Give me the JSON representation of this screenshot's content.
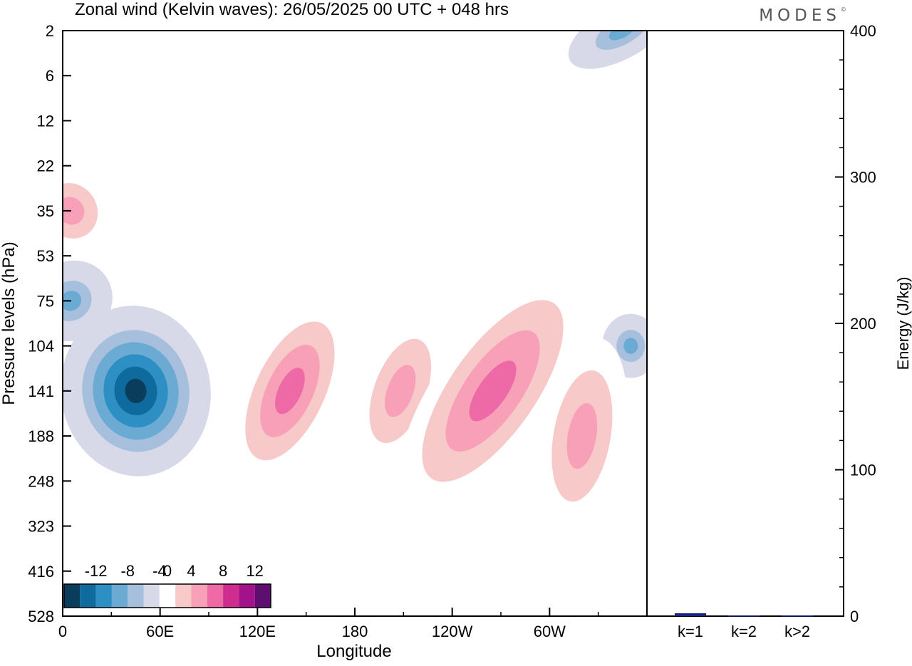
{
  "brand": "MODES",
  "brand_mark": "©",
  "chart_data": [
    {
      "type": "heatmap",
      "title": "Zonal wind (Kelvin waves):  26/05/2025  00 UTC  + 048 hrs",
      "xlabel": "Longitude",
      "ylabel": "Pressure levels (hPa)",
      "x_ticks": [
        "0",
        "60E",
        "120E",
        "180",
        "120W",
        "60W"
      ],
      "x_tick_degrees": [
        0,
        60,
        120,
        180,
        240,
        300
      ],
      "xlim": [
        0,
        360
      ],
      "y_ticks": [
        "2",
        "6",
        "12",
        "22",
        "35",
        "53",
        "75",
        "104",
        "141",
        "188",
        "248",
        "323",
        "416",
        "528"
      ],
      "y_scale": "log-pressure (levels evenly spaced)",
      "colorbar": {
        "labels": [
          "-12",
          "-8",
          "-4",
          "0",
          "4",
          "8",
          "12"
        ],
        "levels": [
          -14,
          -12,
          -10,
          -8,
          -6,
          -4,
          -2,
          2,
          4,
          6,
          8,
          10,
          12,
          14
        ],
        "colors": [
          "#0a3d5c",
          "#0f6b9e",
          "#2d8fc4",
          "#6aaad3",
          "#a5bfdc",
          "#d7d8e8",
          "#ffffff",
          "#f7c9c9",
          "#f7a0b8",
          "#ee6aa7",
          "#cf2d8e",
          "#a3128a",
          "#5e0e6e"
        ],
        "placement": "bottom-left"
      },
      "features": [
        {
          "sign": "negative",
          "peak_value": -14,
          "lon_center": 45,
          "level_center": 141
        },
        {
          "sign": "negative",
          "peak_value": -8,
          "lon_center": 5,
          "level_center": 75
        },
        {
          "sign": "negative",
          "peak_value": -8,
          "lon_center": 350,
          "level_center": 104
        },
        {
          "sign": "negative",
          "peak_value": -8,
          "lon_center": 345,
          "level_center": 2
        },
        {
          "sign": "positive",
          "peak_value": 8,
          "lon_center": 140,
          "level_center": 141
        },
        {
          "sign": "positive",
          "peak_value": 6,
          "lon_center": 208,
          "level_center": 141
        },
        {
          "sign": "positive",
          "peak_value": 8,
          "lon_center": 265,
          "level_center": 141
        },
        {
          "sign": "positive",
          "peak_value": 6,
          "lon_center": 320,
          "level_center": 188
        },
        {
          "sign": "positive",
          "peak_value": 6,
          "lon_center": 5,
          "level_center": 35
        }
      ]
    },
    {
      "type": "bar",
      "ylabel": "Energy (J/kg)",
      "categories": [
        "k=1",
        "k=2",
        "k>2"
      ],
      "values": [
        2,
        0.5,
        0.5
      ],
      "ylim": [
        0,
        400
      ],
      "y_ticks": [
        "0",
        "100",
        "200",
        "300",
        "400"
      ],
      "y_tick_values": [
        0,
        100,
        200,
        300,
        400
      ],
      "bar_color": "#1a237e"
    }
  ]
}
